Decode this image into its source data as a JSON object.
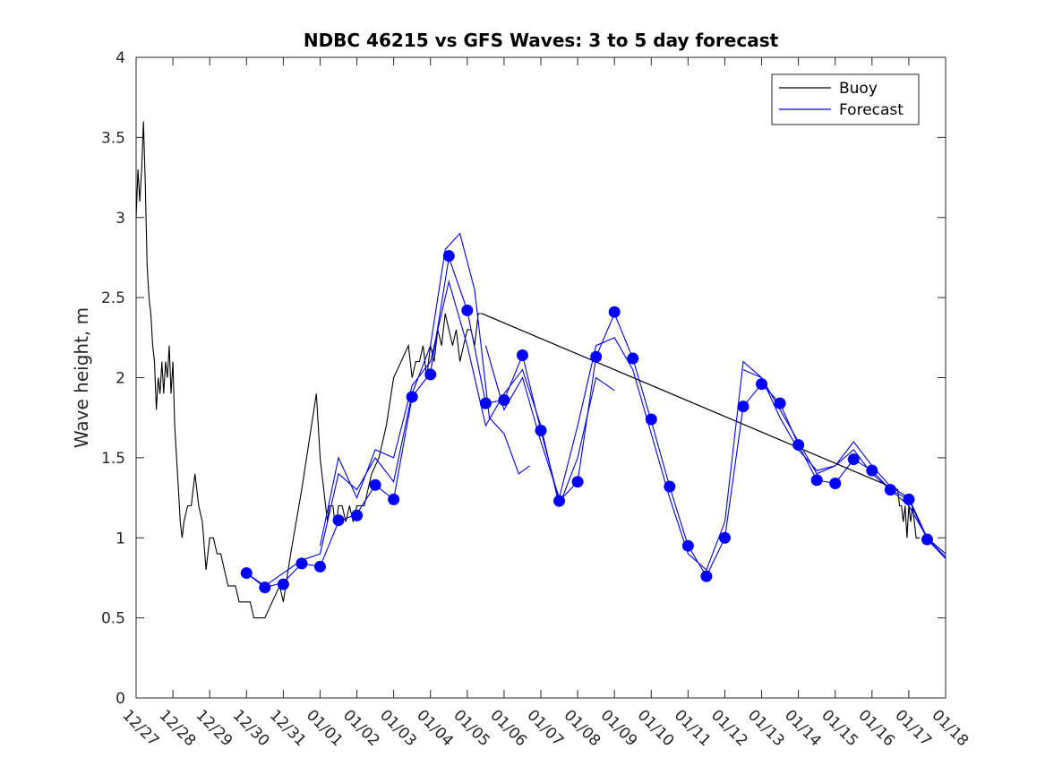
{
  "chart_data": {
    "type": "line",
    "title": "NDBC 46215 vs GFS Waves: 3 to 5 day forecast",
    "xlabel": "",
    "ylabel": "Wave height, m",
    "xlim": [
      0,
      22
    ],
    "ylim": [
      0,
      4
    ],
    "x_unit": "days since 12/27",
    "xtick_labels": [
      "12/27",
      "12/28",
      "12/29",
      "12/30",
      "12/31",
      "01/01",
      "01/02",
      "01/03",
      "01/04",
      "01/05",
      "01/06",
      "01/07",
      "01/08",
      "01/09",
      "01/10",
      "01/11",
      "01/12",
      "01/13",
      "01/14",
      "01/15",
      "01/16",
      "01/17",
      "01/18"
    ],
    "ytick_values": [
      0,
      0.5,
      1,
      1.5,
      2,
      2.5,
      3,
      3.5,
      4
    ],
    "ytick_labels": [
      "0",
      "0.5",
      "1",
      "1.5",
      "2",
      "2.5",
      "3",
      "3.5",
      "4"
    ],
    "legend": {
      "position": "top-right",
      "entries": [
        "Buoy",
        "Forecast"
      ]
    },
    "colors": {
      "buoy": "#000000",
      "forecast": "#0000ee",
      "marker": "#0000ff",
      "axis": "#262626"
    },
    "series": [
      {
        "name": "Buoy",
        "x": [
          0,
          0.05,
          0.1,
          0.15,
          0.2,
          0.25,
          0.3,
          0.35,
          0.4,
          0.45,
          0.5,
          0.55,
          0.6,
          0.65,
          0.7,
          0.75,
          0.8,
          0.85,
          0.9,
          0.95,
          1.0,
          1.05,
          1.1,
          1.15,
          1.2,
          1.25,
          1.3,
          1.4,
          1.5,
          1.6,
          1.7,
          1.8,
          1.9,
          2.0,
          2.1,
          2.2,
          2.3,
          2.4,
          2.5,
          2.6,
          2.7,
          2.8,
          2.9,
          3.0,
          3.1,
          3.2,
          3.3,
          3.5,
          3.7,
          3.9,
          4.0,
          4.2,
          4.5,
          4.7,
          4.9,
          5.0,
          5.05,
          5.1,
          5.15,
          5.2,
          5.25,
          5.3,
          5.35,
          5.4,
          5.45,
          5.5,
          5.6,
          5.7,
          5.8,
          5.9,
          6.0,
          6.2,
          6.4,
          6.6,
          6.8,
          7.0,
          7.2,
          7.4,
          7.5,
          7.6,
          7.7,
          7.8,
          7.9,
          8.0,
          8.1,
          8.2,
          8.3,
          8.4,
          8.5,
          8.6,
          8.7,
          8.8,
          8.9,
          9.0,
          9.1,
          9.2,
          9.3,
          9.4,
          20.7,
          20.75,
          20.8,
          20.85,
          20.9,
          20.95,
          21.0,
          21.05,
          21.1,
          21.15,
          21.2,
          21.25,
          21.3
        ],
        "values": [
          3.0,
          3.3,
          3.1,
          3.3,
          3.6,
          3.2,
          2.7,
          2.5,
          2.4,
          2.2,
          2.1,
          1.8,
          2.0,
          1.9,
          2.1,
          1.9,
          2.1,
          2.0,
          2.2,
          1.9,
          2.1,
          1.7,
          1.5,
          1.3,
          1.1,
          1.0,
          1.1,
          1.2,
          1.2,
          1.4,
          1.2,
          1.1,
          0.8,
          1.0,
          1.0,
          0.9,
          0.9,
          0.8,
          0.7,
          0.7,
          0.7,
          0.6,
          0.6,
          0.6,
          0.6,
          0.5,
          0.5,
          0.5,
          0.6,
          0.7,
          0.6,
          0.9,
          1.3,
          1.6,
          1.9,
          1.5,
          1.4,
          1.3,
          1.2,
          1.1,
          1.2,
          1.2,
          1.2,
          1.1,
          1.1,
          1.2,
          1.2,
          1.1,
          1.2,
          1.1,
          1.2,
          1.2,
          1.4,
          1.5,
          1.7,
          2.0,
          2.1,
          2.2,
          2.0,
          2.1,
          2.1,
          2.2,
          2.0,
          2.2,
          2.1,
          2.3,
          2.2,
          2.4,
          2.3,
          2.2,
          2.3,
          2.1,
          2.2,
          2.3,
          2.3,
          2.2,
          2.4,
          2.4,
          1.3,
          1.2,
          1.2,
          1.1,
          1.2,
          1.0,
          1.2,
          1.1,
          1.2,
          1.1,
          1.0,
          1.0,
          1.0
        ]
      },
      {
        "name": "Forecast",
        "note": "forecast analysis curve (one of several overlapping forecast lines)",
        "x": [
          3.0,
          3.5,
          4.0,
          4.5,
          5.0,
          5.5,
          6.0,
          6.5,
          7.0,
          7.5,
          8.0,
          8.5,
          9.0,
          9.5,
          10.0,
          10.5,
          11.0,
          11.5,
          12.0,
          12.5,
          13.0,
          13.5,
          14.0,
          14.5,
          15.0,
          15.5,
          16.0,
          16.5,
          17.0,
          17.5,
          18.0,
          18.5,
          19.0,
          19.5,
          20.0,
          20.5,
          21.0,
          21.5,
          22.0
        ],
        "values": [
          0.78,
          0.69,
          0.72,
          0.84,
          0.82,
          1.1,
          1.15,
          1.33,
          1.24,
          1.88,
          2.03,
          2.75,
          2.42,
          1.84,
          1.86,
          2.14,
          1.67,
          1.23,
          1.35,
          2.13,
          2.4,
          2.12,
          1.73,
          1.32,
          0.95,
          0.76,
          1.0,
          1.82,
          1.96,
          1.84,
          1.58,
          1.36,
          1.34,
          1.49,
          1.42,
          1.3,
          1.24,
          0.99,
          0.87
        ]
      },
      {
        "name": "Forecast",
        "note": "additional forecast run",
        "x": [
          3.0,
          3.5,
          4.0,
          4.5,
          5.0,
          5.5,
          6.0,
          6.5,
          7.0,
          7.5,
          8.0,
          8.4,
          8.8,
          9.2,
          9.6,
          10.0,
          10.4,
          10.7
        ],
        "values": [
          0.78,
          0.7,
          0.78,
          0.86,
          0.9,
          1.4,
          1.3,
          1.5,
          1.35,
          1.9,
          2.2,
          2.8,
          2.9,
          2.55,
          1.75,
          1.65,
          1.4,
          1.45
        ]
      },
      {
        "name": "Forecast",
        "note": "additional forecast run",
        "x": [
          5.0,
          5.5,
          6.0,
          6.5,
          7.0,
          7.5,
          8.0,
          8.5,
          9.0,
          9.5,
          10.0,
          10.5,
          11.0,
          11.5,
          12.0,
          12.5,
          13.0
        ],
        "values": [
          0.95,
          1.5,
          1.25,
          1.55,
          1.5,
          1.95,
          2.1,
          2.6,
          2.2,
          1.7,
          1.9,
          2.05,
          1.7,
          1.2,
          1.5,
          2.0,
          1.92
        ]
      },
      {
        "name": "Forecast",
        "note": "additional forecast run",
        "x": [
          9.5,
          10.0,
          10.5,
          11.0,
          11.5,
          12.0,
          12.5,
          13.0,
          13.5,
          14.0,
          14.5,
          15.0,
          15.5,
          16.0,
          16.5,
          17.0,
          17.5,
          18.0,
          18.5,
          19.0,
          19.5,
          20.0,
          20.5,
          21.0,
          21.5,
          22.0
        ],
        "values": [
          2.2,
          1.8,
          2.0,
          1.6,
          1.25,
          1.7,
          2.2,
          2.25,
          2.05,
          1.65,
          1.25,
          0.9,
          0.8,
          1.1,
          2.1,
          2.0,
          1.75,
          1.55,
          1.42,
          1.45,
          1.6,
          1.45,
          1.32,
          1.25,
          1.0,
          0.9
        ]
      },
      {
        "name": "Forecast",
        "note": "additional forecast run",
        "x": [
          16.5,
          17.0,
          17.5,
          18.0,
          18.5,
          19.0,
          19.5,
          20.0,
          20.5,
          21.0,
          21.5,
          22.0
        ],
        "values": [
          2.05,
          2.0,
          1.8,
          1.6,
          1.4,
          1.45,
          1.55,
          1.4,
          1.3,
          1.2,
          1.0,
          0.88
        ]
      }
    ],
    "markers": {
      "name": "Forecast",
      "x": [
        3.0,
        3.5,
        4.0,
        4.5,
        5.0,
        5.5,
        6.0,
        6.5,
        7.0,
        7.5,
        8.0,
        8.5,
        9.0,
        9.5,
        10.0,
        10.5,
        11.0,
        11.5,
        12.0,
        12.5,
        13.0,
        13.5,
        14.0,
        14.5,
        15.0,
        15.5,
        16.0,
        16.5,
        17.0,
        17.5,
        18.0,
        18.5,
        19.0,
        19.5,
        20.0,
        20.5,
        21.0,
        21.5
      ],
      "values": [
        0.78,
        0.69,
        0.71,
        0.84,
        0.82,
        1.11,
        1.14,
        1.33,
        1.24,
        1.88,
        2.02,
        2.76,
        2.42,
        1.84,
        1.86,
        2.14,
        1.67,
        1.23,
        1.35,
        2.13,
        2.41,
        2.12,
        1.74,
        1.32,
        0.95,
        0.76,
        1.0,
        1.82,
        1.96,
        1.84,
        1.58,
        1.36,
        1.34,
        1.49,
        1.42,
        1.3,
        1.24,
        0.99
      ]
    },
    "gap_line": {
      "name": "Buoy",
      "x": [
        9.4,
        20.7
      ],
      "values": [
        2.4,
        1.3
      ]
    }
  }
}
